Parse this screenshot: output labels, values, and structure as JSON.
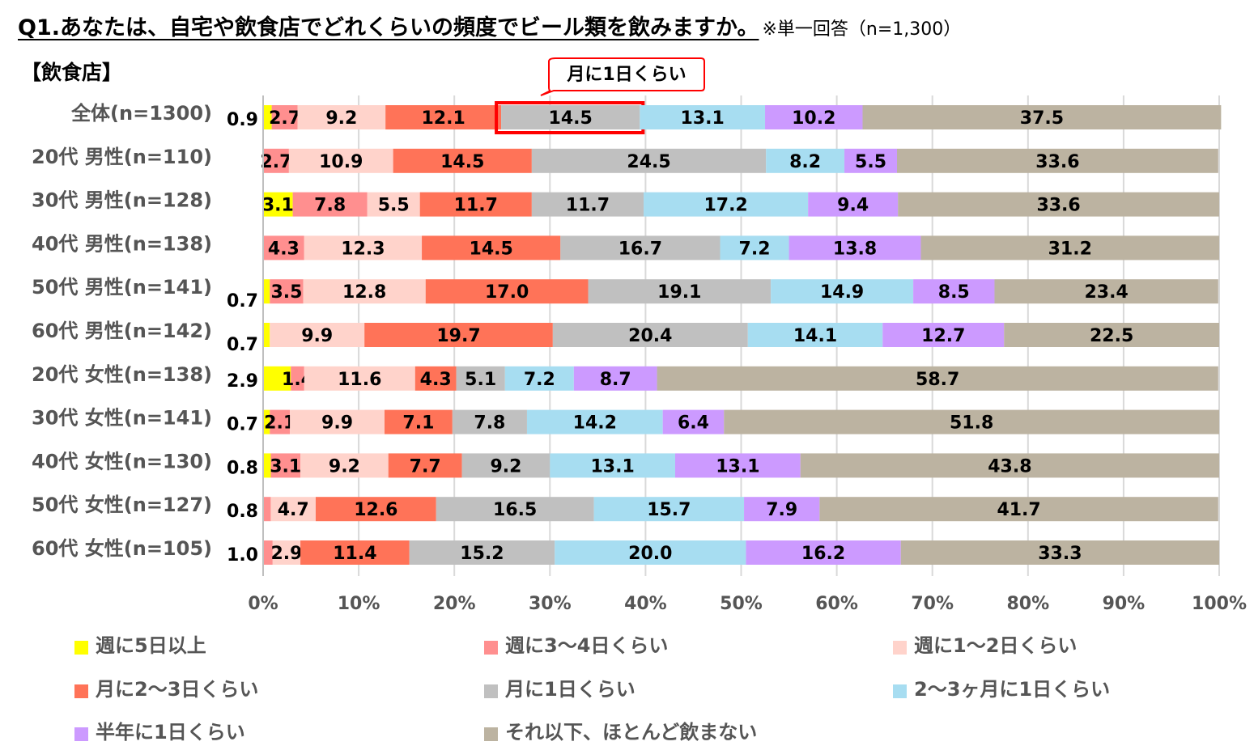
{
  "title": "Q1.あなたは、自宅や飲食店でどれくらいの頻度でビール類を飲みますか。",
  "note": "※単一回答（n=1,300）",
  "subtitle": "【飲食店】",
  "callout": "月に1日くらい",
  "chart_data": {
    "type": "bar",
    "orientation": "horizontal-stacked-100",
    "categories": [
      "全体(n=1300)",
      "20代 男性(n=110)",
      "30代 男性(n=128)",
      "40代 男性(n=138)",
      "50代 男性(n=141)",
      "60代 男性(n=142)",
      "20代 女性(n=138)",
      "30代 女性(n=141)",
      "40代 女性(n=130)",
      "50代 女性(n=127)",
      "60代 女性(n=105)"
    ],
    "series": [
      {
        "name": "週に5日以上",
        "color": "#FFFF00",
        "values": [
          0.9,
          0,
          3.1,
          0,
          0.7,
          0.7,
          2.9,
          0.7,
          0.8,
          0,
          0
        ]
      },
      {
        "name": "週に3～4日くらい",
        "color": "#FF8F8F",
        "values": [
          2.7,
          2.7,
          7.8,
          4.3,
          3.5,
          0,
          1.4,
          2.1,
          3.1,
          0.8,
          1.0
        ]
      },
      {
        "name": "週に1～2日くらい",
        "color": "#FFD3CB",
        "values": [
          9.2,
          10.9,
          5.5,
          12.3,
          12.8,
          9.9,
          11.6,
          9.9,
          9.2,
          4.7,
          2.9
        ]
      },
      {
        "name": "月に2～3日くらい",
        "color": "#FF7358",
        "values": [
          12.1,
          14.5,
          11.7,
          14.5,
          17.0,
          19.7,
          4.3,
          7.1,
          7.7,
          12.6,
          11.4
        ]
      },
      {
        "name": "月に1日くらい",
        "color": "#C0C0C0",
        "values": [
          14.5,
          24.5,
          11.7,
          16.7,
          19.1,
          20.4,
          5.1,
          7.8,
          9.2,
          16.5,
          15.2
        ]
      },
      {
        "name": "2～3ヶ月に1日くらい",
        "color": "#A7DDF1",
        "values": [
          13.1,
          8.2,
          17.2,
          7.2,
          14.9,
          14.1,
          7.2,
          14.2,
          13.1,
          15.7,
          20.0
        ]
      },
      {
        "name": "半年に1日くらい",
        "color": "#CC9AFF",
        "values": [
          10.2,
          5.5,
          9.4,
          13.8,
          8.5,
          12.7,
          8.7,
          6.4,
          13.1,
          7.9,
          16.2
        ]
      },
      {
        "name": "それ以下、ほとんど飲まない",
        "color": "#BCB3A1",
        "values": [
          37.5,
          33.6,
          33.6,
          31.2,
          23.4,
          22.5,
          58.7,
          51.8,
          43.8,
          41.7,
          33.3
        ]
      }
    ],
    "xticks": [
      "0%",
      "10%",
      "20%",
      "30%",
      "40%",
      "50%",
      "60%",
      "70%",
      "80%",
      "90%",
      "100%"
    ],
    "xlim": [
      0,
      100
    ],
    "highlight": {
      "category": "全体(n=1300)",
      "series": "月に1日くらい"
    },
    "legend": "bottom",
    "grid": true
  }
}
